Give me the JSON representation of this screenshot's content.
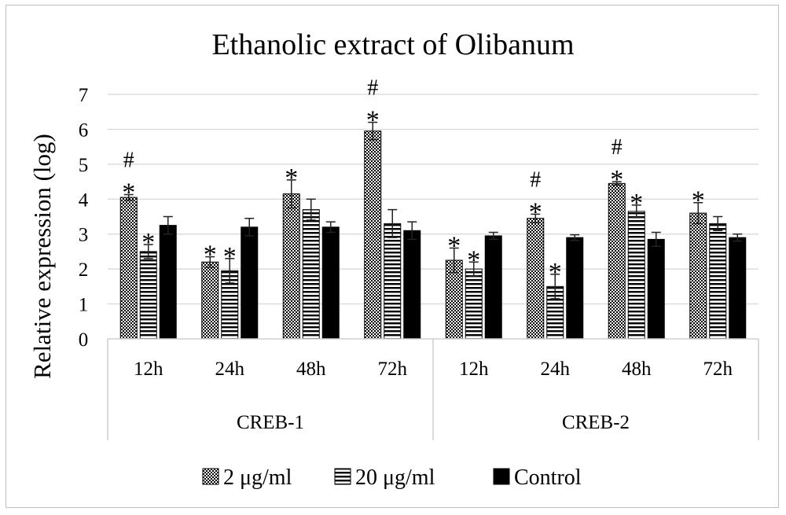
{
  "chart_data": {
    "type": "bar",
    "title": "Ethanolic extract of Olibanum",
    "ylabel": "Relative expression (log)",
    "xlabel": "",
    "ylim": [
      0,
      7
    ],
    "yticks": [
      "0",
      "1",
      "2",
      "3",
      "4",
      "5",
      "6",
      "7"
    ],
    "grid": true,
    "legend_position": "bottom",
    "groups": [
      {
        "label": "CREB-1",
        "categories": [
          "12h",
          "24h",
          "48h",
          "72h"
        ]
      },
      {
        "label": "CREB-2",
        "categories": [
          "12h",
          "24h",
          "48h",
          "72h"
        ]
      }
    ],
    "series": [
      {
        "name": "2 μg/ml",
        "pattern": "dots",
        "values": [
          4.05,
          2.2,
          4.15,
          5.95,
          2.25,
          3.45,
          4.45,
          3.6
        ],
        "errors": [
          0.08,
          0.15,
          0.4,
          0.25,
          0.35,
          0.12,
          0.05,
          0.3
        ]
      },
      {
        "name": "20 μg/ml",
        "pattern": "stripes",
        "values": [
          2.5,
          1.95,
          3.7,
          3.3,
          2.0,
          1.5,
          3.65,
          3.3
        ],
        "errors": [
          0.2,
          0.35,
          0.3,
          0.4,
          0.2,
          0.35,
          0.18,
          0.2
        ]
      },
      {
        "name": "Control",
        "pattern": "solid",
        "values": [
          3.25,
          3.2,
          3.2,
          3.1,
          2.95,
          2.9,
          2.85,
          2.9
        ],
        "errors": [
          0.25,
          0.25,
          0.15,
          0.25,
          0.1,
          0.08,
          0.2,
          0.1
        ]
      }
    ],
    "annotations": [
      {
        "series": 0,
        "index": 0,
        "text": "*"
      },
      {
        "series": 0,
        "index": 0,
        "text": "#"
      },
      {
        "series": 1,
        "index": 0,
        "text": "*"
      },
      {
        "series": 0,
        "index": 1,
        "text": "*"
      },
      {
        "series": 1,
        "index": 1,
        "text": "*"
      },
      {
        "series": 0,
        "index": 2,
        "text": "*"
      },
      {
        "series": 0,
        "index": 3,
        "text": "*"
      },
      {
        "series": 0,
        "index": 3,
        "text": "#"
      },
      {
        "series": 0,
        "index": 4,
        "text": "*"
      },
      {
        "series": 1,
        "index": 4,
        "text": "*"
      },
      {
        "series": 0,
        "index": 5,
        "text": "*"
      },
      {
        "series": 0,
        "index": 5,
        "text": "#"
      },
      {
        "series": 1,
        "index": 5,
        "text": "*"
      },
      {
        "series": 0,
        "index": 6,
        "text": "*"
      },
      {
        "series": 0,
        "index": 6,
        "text": "#"
      },
      {
        "series": 1,
        "index": 6,
        "text": "*"
      },
      {
        "series": 0,
        "index": 7,
        "text": "*"
      }
    ]
  }
}
